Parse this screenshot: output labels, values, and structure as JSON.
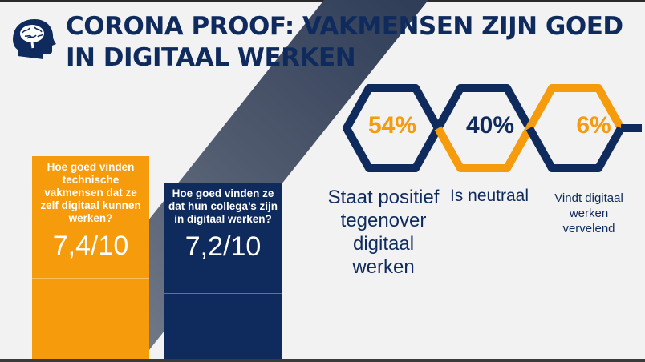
{
  "title": "CORONA PROOF: VAKMENSEN ZIJN GOED IN DIGITAAL WERKEN",
  "colors": {
    "navy": "#0f2a5c",
    "orange": "#f59b0c",
    "background": "#f2f2f2"
  },
  "icons": {
    "title_icon": "brain-head-icon"
  },
  "cards": [
    {
      "question": "Hoe goed vinden technische vakmensen dat ze zelf digitaal kunnen werken?",
      "score": "7,4/10"
    },
    {
      "question": "Hoe goed vinden ze dat hun collega’s zijn in digitaal werken?",
      "score": "7,2/10"
    }
  ],
  "stats": [
    {
      "percent": "54%",
      "caption": "Staat positief tegenover digitaal werken"
    },
    {
      "percent": "40%",
      "caption": "Is neutraal"
    },
    {
      "percent": "6%",
      "caption": "Vindt digitaal werken vervelend"
    }
  ]
}
